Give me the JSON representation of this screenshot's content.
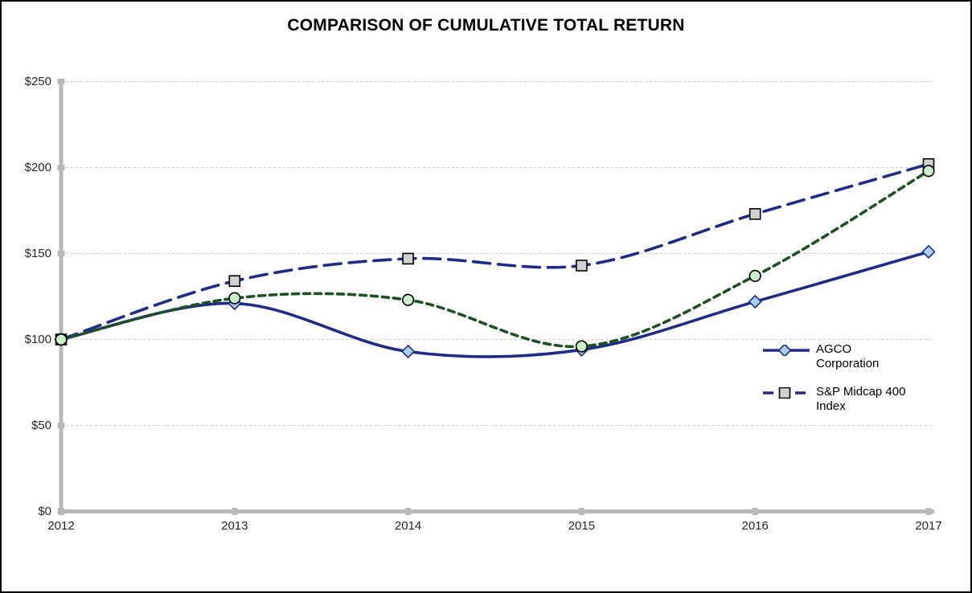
{
  "chart_data": {
    "type": "line",
    "title": "COMPARISON OF CUMULATIVE TOTAL RETURN",
    "x": [
      "2012",
      "2013",
      "2014",
      "2015",
      "2016",
      "2017"
    ],
    "xlabel": "",
    "ylabel": "",
    "ylim": [
      0,
      250
    ],
    "ytick_step": 50,
    "ytick_labels": [
      "$0",
      "$50",
      "$100",
      "$150",
      "$200",
      "$250"
    ],
    "grid": "horizontal dashed gridlines every $50, light gray",
    "legend_position": "right-middle, overlaid on plot, no border",
    "series": [
      {
        "id": "agco-corporation",
        "name": "AGCO Corporation",
        "values": [
          100,
          121,
          93,
          94,
          122,
          151
        ],
        "line_style": "solid",
        "line_color": "#1e2d83",
        "marker": "diamond",
        "marker_fill": "#aacdf0",
        "marker_border": "#1e2d83",
        "in_legend": true
      },
      {
        "id": "sp-midcap-400-index",
        "name": "S&P Midcap 400 Index",
        "values": [
          100,
          134,
          147,
          143,
          173,
          202
        ],
        "line_style": "long-dash",
        "line_color": "#1e2d83",
        "marker": "square",
        "marker_fill": "#d2d2d2",
        "marker_border": "#000000",
        "in_legend": true
      },
      {
        "id": "green-dotted-series",
        "name": "",
        "values": [
          100,
          124,
          123,
          96,
          137,
          198
        ],
        "line_style": "short-dash",
        "line_color": "#1d5322",
        "marker": "circle",
        "marker_fill": "#c9efc9",
        "marker_border": "#000000",
        "in_legend": false
      }
    ],
    "axis_color": "#b8b8b8",
    "gridline_color": "#c9c9c9"
  }
}
